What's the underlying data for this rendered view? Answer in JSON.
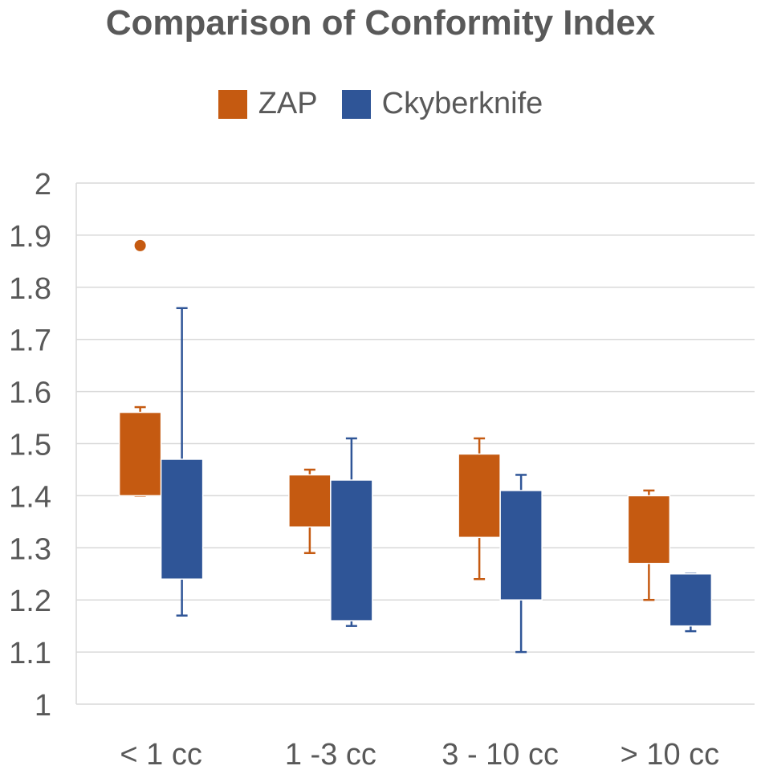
{
  "chart_data": {
    "type": "boxplot",
    "title": "Comparison of Conformity Index",
    "xlabel": "",
    "ylabel": "",
    "ylim": [
      1,
      2
    ],
    "ytick_step": 0.1,
    "yticks": [
      "1",
      "1.1",
      "1.2",
      "1.3",
      "1.4",
      "1.5",
      "1.6",
      "1.7",
      "1.8",
      "1.9",
      "2"
    ],
    "grid": true,
    "legend_position": "top",
    "categories": [
      "< 1 cc",
      "1 -3 cc",
      "3 - 10 cc",
      "> 10 cc"
    ],
    "series": [
      {
        "name": "ZAP",
        "color": "#C55A11",
        "boxes": [
          {
            "min": 1.4,
            "q1": 1.4,
            "q3": 1.56,
            "max": 1.57,
            "outliers": [
              1.88
            ]
          },
          {
            "min": 1.29,
            "q1": 1.34,
            "q3": 1.44,
            "max": 1.45,
            "outliers": []
          },
          {
            "min": 1.24,
            "q1": 1.32,
            "q3": 1.48,
            "max": 1.51,
            "outliers": []
          },
          {
            "min": 1.2,
            "q1": 1.27,
            "q3": 1.4,
            "max": 1.41,
            "outliers": []
          }
        ]
      },
      {
        "name": "Ckyberknife",
        "color": "#2F5597",
        "boxes": [
          {
            "min": 1.17,
            "q1": 1.24,
            "q3": 1.47,
            "max": 1.76,
            "outliers": []
          },
          {
            "min": 1.15,
            "q1": 1.16,
            "q3": 1.43,
            "max": 1.51,
            "outliers": []
          },
          {
            "min": 1.1,
            "q1": 1.2,
            "q3": 1.41,
            "max": 1.44,
            "outliers": []
          },
          {
            "min": 1.14,
            "q1": 1.15,
            "q3": 1.25,
            "max": 1.25,
            "outliers": []
          }
        ]
      }
    ]
  }
}
